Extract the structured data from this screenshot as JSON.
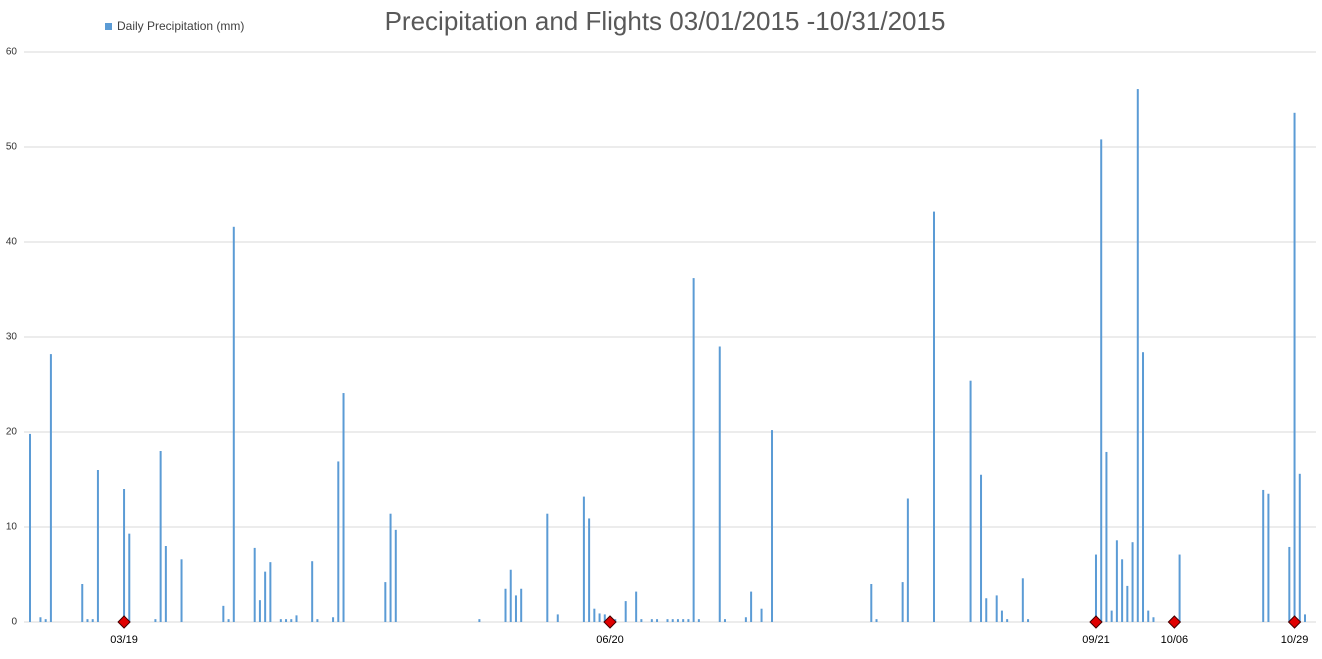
{
  "chart_data": {
    "type": "bar",
    "title": "Precipitation and Flights 03/01/2015 -10/31/2015",
    "xlim": [
      "03/01",
      "10/31"
    ],
    "ylim": [
      0,
      60
    ],
    "yticks": [
      0,
      10,
      20,
      30,
      40,
      50,
      60
    ],
    "grid": true,
    "series": [
      {
        "name": "Daily Precipitation (mm)",
        "color": "#5b9bd5",
        "x": [
          "03/01",
          "03/03",
          "03/04",
          "03/05",
          "03/11",
          "03/12",
          "03/13",
          "03/14",
          "03/19",
          "03/20",
          "03/25",
          "03/26",
          "03/27",
          "03/30",
          "04/07",
          "04/08",
          "04/09",
          "04/13",
          "04/14",
          "04/15",
          "04/16",
          "04/18",
          "04/19",
          "04/20",
          "04/21",
          "04/24",
          "04/25",
          "04/28",
          "04/29",
          "04/30",
          "05/08",
          "05/09",
          "05/10",
          "05/26",
          "05/31",
          "06/01",
          "06/02",
          "06/03",
          "06/08",
          "06/10",
          "06/15",
          "06/16",
          "06/17",
          "06/18",
          "06/19",
          "06/20",
          "06/21",
          "06/23",
          "06/25",
          "06/26",
          "06/28",
          "06/29",
          "07/01",
          "07/02",
          "07/03",
          "07/04",
          "07/05",
          "07/06",
          "07/07",
          "07/11",
          "07/12",
          "07/16",
          "07/17",
          "07/19",
          "07/21",
          "08/09",
          "08/10",
          "08/15",
          "08/16",
          "08/21",
          "08/28",
          "08/30",
          "08/31",
          "09/02",
          "09/03",
          "09/04",
          "09/07",
          "09/08",
          "09/21",
          "09/22",
          "09/23",
          "09/24",
          "09/25",
          "09/26",
          "09/27",
          "09/28",
          "09/29",
          "09/30",
          "10/01",
          "10/02",
          "10/07",
          "10/23",
          "10/24",
          "10/28",
          "10/29",
          "10/30",
          "10/31"
        ],
        "values": [
          19.8,
          0.5,
          0.3,
          28.2,
          4,
          0.3,
          0.3,
          16,
          14,
          9.3,
          0.3,
          18,
          8,
          6.6,
          1.7,
          0.3,
          41.6,
          7.8,
          2.3,
          5.3,
          6.3,
          0.3,
          0.3,
          0.3,
          0.7,
          6.4,
          0.3,
          0.5,
          16.9,
          24.1,
          4.2,
          11.4,
          9.7,
          0.3,
          3.5,
          5.5,
          2.8,
          3.5,
          11.4,
          0.8,
          13.2,
          10.9,
          1.4,
          0.9,
          0.8,
          0.3,
          0.3,
          2.2,
          3.2,
          0.3,
          0.3,
          0.3,
          0.3,
          0.3,
          0.3,
          0.3,
          0.3,
          36.2,
          0.3,
          29,
          0.3,
          0.5,
          3.2,
          1.4,
          20.2,
          4,
          0.3,
          4.2,
          13,
          43.2,
          25.4,
          15.5,
          2.5,
          2.8,
          1.2,
          0.3,
          4.6,
          0.3,
          7.1,
          50.8,
          17.9,
          1.2,
          8.6,
          6.6,
          3.8,
          8.4,
          56.1,
          28.4,
          1.2,
          0.5,
          7.1,
          13.9,
          13.5,
          7.9,
          53.6,
          15.6,
          0.8
        ]
      }
    ],
    "markers": {
      "color": "#e00000",
      "x": [
        "03/19",
        "06/20",
        "09/21",
        "10/06",
        "10/29"
      ],
      "values": [
        0,
        0,
        0,
        0,
        0
      ]
    }
  }
}
